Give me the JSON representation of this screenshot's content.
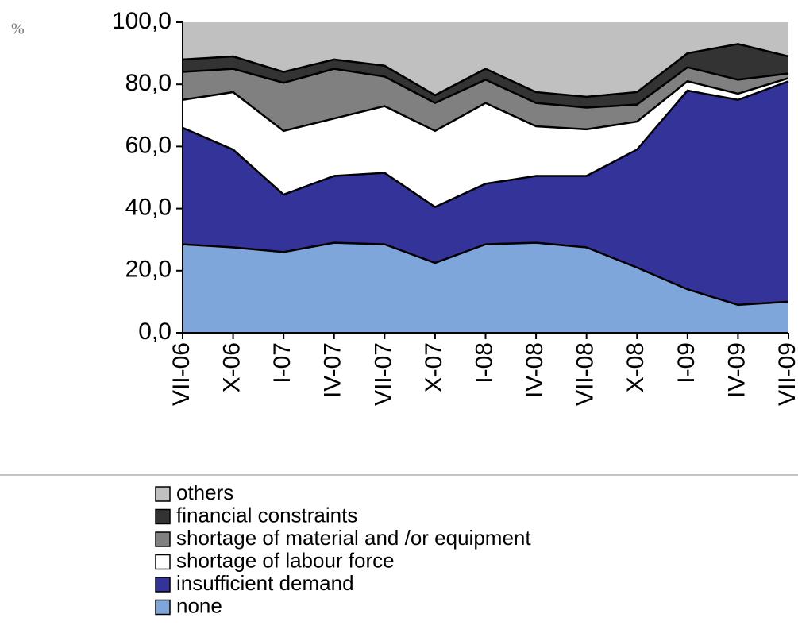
{
  "chart_data": {
    "type": "stacked-area",
    "y_label": "%",
    "categories": [
      "VII-06",
      "X-06",
      "I-07",
      "IV-07",
      "VII-07",
      "X-07",
      "I-08",
      "IV-08",
      "VII-08",
      "X-08",
      "I-09",
      "IV-09",
      "VII-09"
    ],
    "series": [
      {
        "name": "none",
        "color": "#7fa6da",
        "values": [
          28.5,
          27.5,
          26,
          29,
          28.5,
          22.5,
          28.5,
          29,
          27.5,
          21,
          14,
          9,
          10
        ]
      },
      {
        "name": "insufficient demand",
        "color": "#333399",
        "values": [
          37.5,
          31.5,
          18.5,
          21.5,
          23,
          18,
          19.5,
          21.5,
          23,
          38,
          64,
          66,
          71
        ]
      },
      {
        "name": "shortage of labour force",
        "color": "#ffffff",
        "values": [
          9,
          18.5,
          20.5,
          18.5,
          21.5,
          24.5,
          26,
          16,
          15,
          9,
          3,
          2,
          1
        ]
      },
      {
        "name": "shortage of material and /or equipment",
        "color": "#808080",
        "values": [
          9,
          7.5,
          15.5,
          16,
          9.5,
          9,
          7.5,
          7.5,
          7,
          5.5,
          4.5,
          4.5,
          1.5
        ]
      },
      {
        "name": "financial constraints",
        "color": "#333333",
        "values": [
          4,
          4,
          3.5,
          3,
          3.5,
          2.5,
          3.5,
          3.5,
          3.5,
          4,
          4.5,
          11.5,
          5.5
        ]
      },
      {
        "name": "others",
        "color": "#c0c0c0",
        "values": [
          12,
          11,
          16,
          12,
          14,
          23.5,
          15,
          22.5,
          24,
          22.5,
          10,
          7,
          11
        ]
      }
    ],
    "ylim": [
      0,
      100
    ],
    "yticks": [
      {
        "value": 0,
        "label": "0,0"
      },
      {
        "value": 20,
        "label": "20,0"
      },
      {
        "value": 40,
        "label": "40,0"
      },
      {
        "value": 60,
        "label": "60,0"
      },
      {
        "value": 80,
        "label": "80,0"
      },
      {
        "value": 100,
        "label": "100,0"
      }
    ]
  }
}
